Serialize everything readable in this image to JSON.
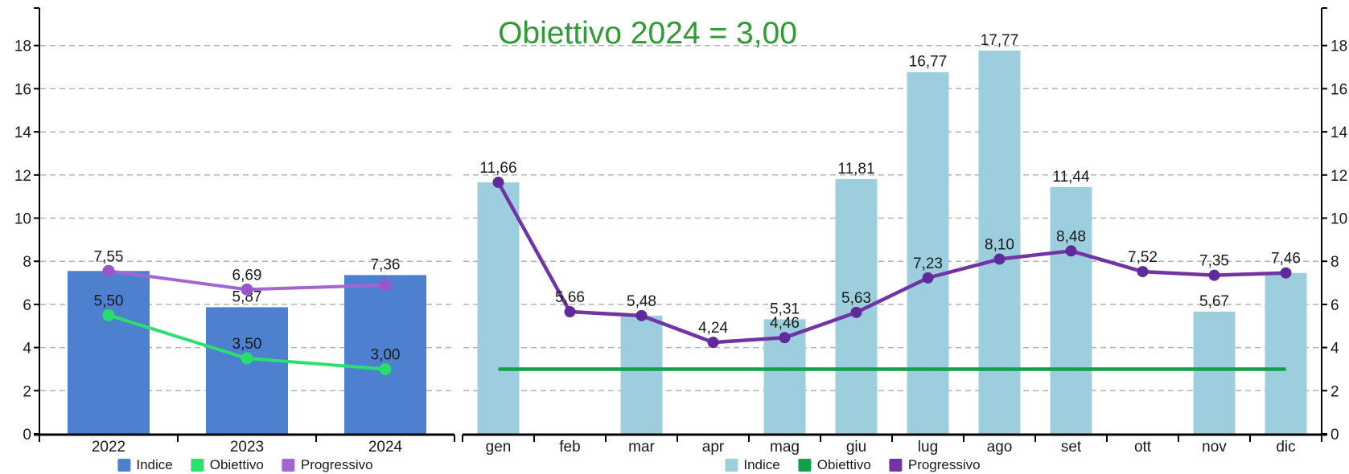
{
  "title": {
    "text": "Obiettivo 2024 = 3,00",
    "color": "#2e9b33"
  },
  "colors": {
    "annual": {
      "indice": "#4d80cf",
      "obiettivo": "#2be06c",
      "obiettivo_dot": "#29dd69",
      "progressivo": "#a266d2",
      "progressivo_dot": "#9757cb"
    },
    "monthly": {
      "indice": "#9ccede",
      "obiettivo": "#12a04c",
      "progressivo": "#7233a5",
      "progressivo_dot": "#5f2a9a"
    },
    "grid": "#b3b3b3",
    "axis": "#000000",
    "label": "#1a1a1a"
  },
  "y_axis": {
    "min": 0,
    "max": 18,
    "tick_step": 2,
    "tick_labels": [
      "0",
      "2",
      "4",
      "6",
      "8",
      "10",
      "12",
      "14",
      "16",
      "18"
    ]
  },
  "chart_data": [
    {
      "id": "annual",
      "type": "bar",
      "categories": [
        "2022",
        "2023",
        "2024"
      ],
      "ylim": [
        0,
        18
      ],
      "grid": true,
      "legend_position": "bottom",
      "legend": [
        "Indice",
        "Obiettivo",
        "Progressivo"
      ],
      "series": [
        {
          "name": "Indice",
          "render": "bar",
          "values": [
            7.55,
            5.87,
            7.36
          ],
          "labels": [
            null,
            "5,87",
            "7,36"
          ]
        },
        {
          "name": "Obiettivo",
          "render": "line",
          "show_dots": true,
          "values": [
            5.5,
            3.5,
            3.0
          ],
          "labels": [
            "5,50",
            "3,50",
            "3,00"
          ]
        },
        {
          "name": "Progressivo",
          "render": "line",
          "show_dots": true,
          "values": [
            7.55,
            6.69,
            6.9
          ],
          "labels": [
            "7,55",
            "6,69",
            null
          ]
        }
      ]
    },
    {
      "id": "monthly",
      "type": "bar",
      "categories": [
        "gen",
        "feb",
        "mar",
        "apr",
        "mag",
        "giu",
        "lug",
        "ago",
        "set",
        "ott",
        "nov",
        "dic"
      ],
      "ylim": [
        0,
        18
      ],
      "grid": true,
      "legend_position": "bottom",
      "legend": [
        "Indice",
        "Obiettivo",
        "Progressivo"
      ],
      "series": [
        {
          "name": "Indice",
          "render": "bar",
          "values": [
            11.66,
            null,
            5.48,
            null,
            5.31,
            11.81,
            16.77,
            17.77,
            11.44,
            null,
            5.67,
            7.46
          ],
          "labels": [
            null,
            null,
            null,
            null,
            "5,31",
            "11,81",
            "16,77",
            "17,77",
            "11,44",
            null,
            "5,67",
            null
          ]
        },
        {
          "name": "Obiettivo",
          "render": "line",
          "show_dots": false,
          "values": [
            3.0,
            3.0,
            3.0,
            3.0,
            3.0,
            3.0,
            3.0,
            3.0,
            3.0,
            3.0,
            3.0,
            3.0
          ],
          "labels": [
            null,
            null,
            null,
            null,
            null,
            null,
            null,
            null,
            null,
            null,
            null,
            null
          ]
        },
        {
          "name": "Progressivo",
          "render": "line",
          "show_dots": true,
          "values": [
            11.66,
            5.66,
            5.48,
            4.24,
            4.46,
            5.63,
            7.23,
            8.1,
            8.48,
            7.52,
            7.35,
            7.46
          ],
          "labels": [
            "11,66",
            "5,66",
            "5,48",
            "4,24",
            "4,46",
            "5,63",
            "7,23",
            "8,10",
            "8,48",
            "7,52",
            "7,35",
            "7,46"
          ]
        }
      ]
    }
  ]
}
